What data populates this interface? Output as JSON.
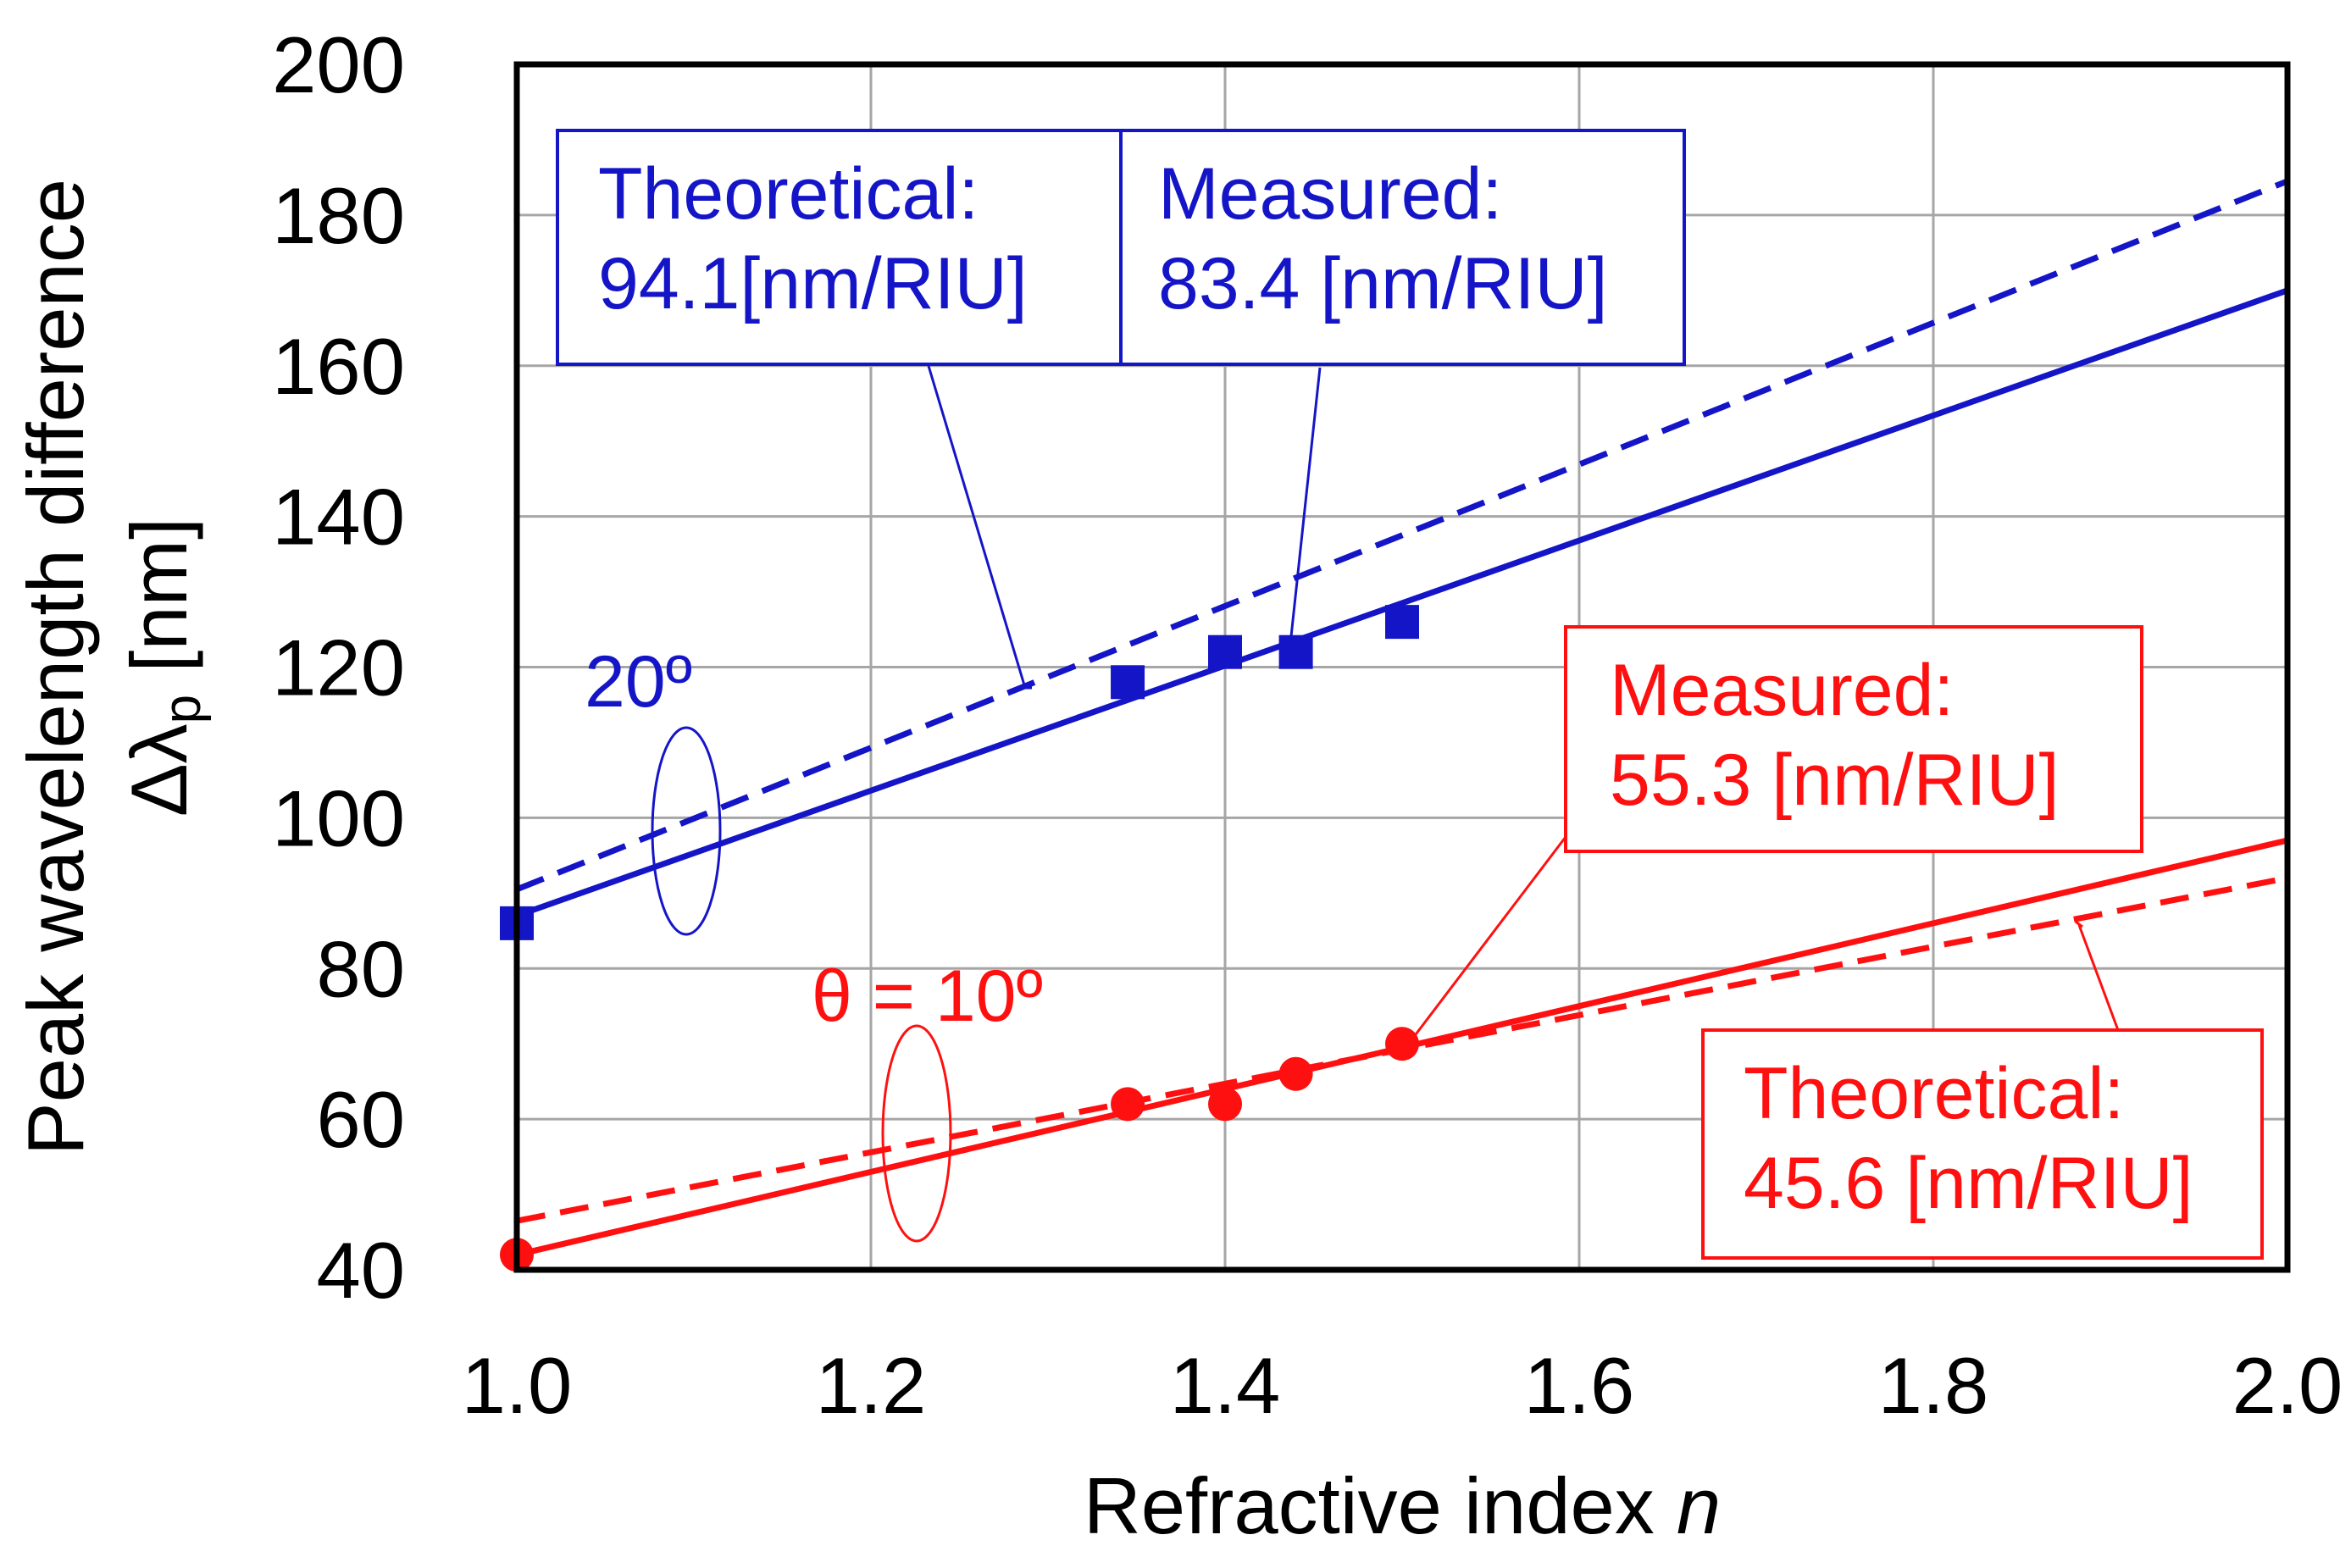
{
  "chart_data": {
    "type": "line",
    "xlabel": "Refractive index ",
    "xlabel_var": "n",
    "ylabel_line1": "Peak wavelength difference",
    "ylabel_line2_prefix": "Δλ",
    "ylabel_line2_sub": "p",
    "ylabel_line2_suffix": " [nm]",
    "xlim": [
      1.0,
      2.0
    ],
    "ylim": [
      40,
      200
    ],
    "xticks": [
      1.0,
      1.2,
      1.4,
      1.6,
      1.8,
      2.0
    ],
    "xtick_labels": [
      "1.0",
      "1.2",
      "1.4",
      "1.6",
      "1.8",
      "2.0"
    ],
    "yticks": [
      40,
      60,
      80,
      100,
      120,
      140,
      160,
      180,
      200
    ],
    "ytick_labels": [
      "40",
      "60",
      "80",
      "100",
      "120",
      "140",
      "160",
      "180",
      "200"
    ],
    "grid": true,
    "colors": {
      "blue": "#1515c8",
      "red": "#ff1010",
      "grid": "#a6a6a6",
      "axis": "#000000"
    },
    "groups": [
      {
        "angle_label": "20º",
        "color": "blue",
        "marker": "square",
        "measured_points": {
          "x": [
            1.0,
            1.345,
            1.4,
            1.44,
            1.5
          ],
          "y": [
            86,
            118,
            122,
            122,
            126
          ]
        },
        "measured_fit": {
          "x": [
            1.0,
            2.0
          ],
          "y": [
            87,
            170
          ]
        },
        "theoretical": {
          "x": [
            1.0,
            2.0
          ],
          "y": [
            90.5,
            184.5
          ]
        },
        "measured_label": [
          "Measured:",
          "83.4 [nm/RIU]"
        ],
        "theoretical_label": [
          "Theoretical:",
          "94.1[nm/RIU]"
        ]
      },
      {
        "angle_label": "θ = 10º",
        "color": "red",
        "marker": "circle",
        "measured_points": {
          "x": [
            1.0,
            1.345,
            1.4,
            1.44,
            1.5
          ],
          "y": [
            42,
            62,
            62,
            66,
            70
          ]
        },
        "measured_fit": {
          "x": [
            1.0,
            2.0
          ],
          "y": [
            42,
            97
          ]
        },
        "theoretical": {
          "x": [
            1.0,
            2.0
          ],
          "y": [
            46.5,
            92
          ]
        },
        "measured_label": [
          "Measured:",
          "55.3 [nm/RIU]"
        ],
        "theoretical_label": [
          "Theoretical:",
          "45.6 [nm/RIU]"
        ]
      }
    ]
  }
}
